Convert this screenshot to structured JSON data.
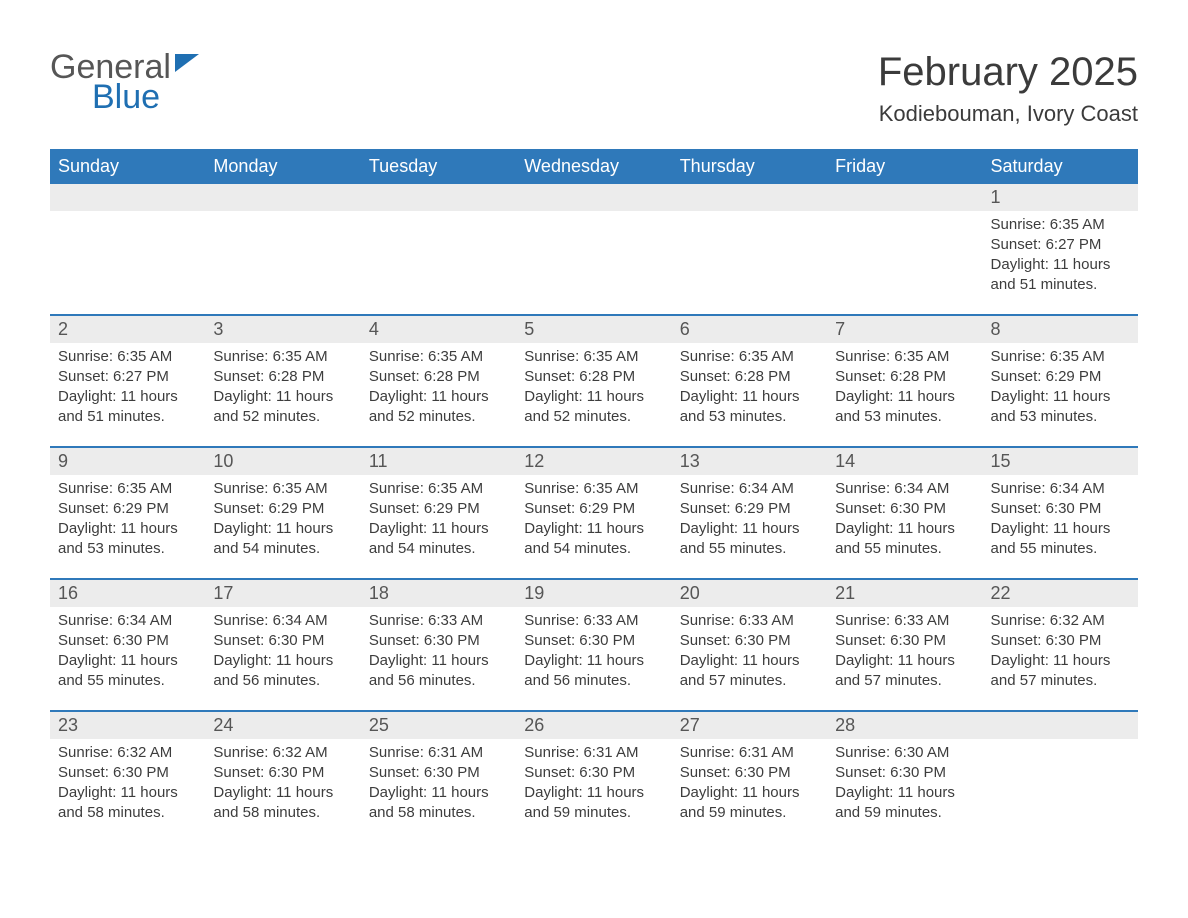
{
  "logo": {
    "word1": "General",
    "word2": "Blue"
  },
  "header": {
    "month_title": "February 2025",
    "location": "Kodiebouman, Ivory Coast"
  },
  "colors": {
    "brand_blue": "#2f79ba",
    "logo_blue": "#1f6fb2",
    "text": "#3a3a3a",
    "daynum_bg": "#ececec",
    "background": "#ffffff"
  },
  "calendar": {
    "days_of_week": [
      "Sunday",
      "Monday",
      "Tuesday",
      "Wednesday",
      "Thursday",
      "Friday",
      "Saturday"
    ],
    "weeks": [
      [
        {
          "n": "",
          "sunrise": "",
          "sunset": "",
          "daylight": ""
        },
        {
          "n": "",
          "sunrise": "",
          "sunset": "",
          "daylight": ""
        },
        {
          "n": "",
          "sunrise": "",
          "sunset": "",
          "daylight": ""
        },
        {
          "n": "",
          "sunrise": "",
          "sunset": "",
          "daylight": ""
        },
        {
          "n": "",
          "sunrise": "",
          "sunset": "",
          "daylight": ""
        },
        {
          "n": "",
          "sunrise": "",
          "sunset": "",
          "daylight": ""
        },
        {
          "n": "1",
          "sunrise": "Sunrise: 6:35 AM",
          "sunset": "Sunset: 6:27 PM",
          "daylight": "Daylight: 11 hours and 51 minutes."
        }
      ],
      [
        {
          "n": "2",
          "sunrise": "Sunrise: 6:35 AM",
          "sunset": "Sunset: 6:27 PM",
          "daylight": "Daylight: 11 hours and 51 minutes."
        },
        {
          "n": "3",
          "sunrise": "Sunrise: 6:35 AM",
          "sunset": "Sunset: 6:28 PM",
          "daylight": "Daylight: 11 hours and 52 minutes."
        },
        {
          "n": "4",
          "sunrise": "Sunrise: 6:35 AM",
          "sunset": "Sunset: 6:28 PM",
          "daylight": "Daylight: 11 hours and 52 minutes."
        },
        {
          "n": "5",
          "sunrise": "Sunrise: 6:35 AM",
          "sunset": "Sunset: 6:28 PM",
          "daylight": "Daylight: 11 hours and 52 minutes."
        },
        {
          "n": "6",
          "sunrise": "Sunrise: 6:35 AM",
          "sunset": "Sunset: 6:28 PM",
          "daylight": "Daylight: 11 hours and 53 minutes."
        },
        {
          "n": "7",
          "sunrise": "Sunrise: 6:35 AM",
          "sunset": "Sunset: 6:28 PM",
          "daylight": "Daylight: 11 hours and 53 minutes."
        },
        {
          "n": "8",
          "sunrise": "Sunrise: 6:35 AM",
          "sunset": "Sunset: 6:29 PM",
          "daylight": "Daylight: 11 hours and 53 minutes."
        }
      ],
      [
        {
          "n": "9",
          "sunrise": "Sunrise: 6:35 AM",
          "sunset": "Sunset: 6:29 PM",
          "daylight": "Daylight: 11 hours and 53 minutes."
        },
        {
          "n": "10",
          "sunrise": "Sunrise: 6:35 AM",
          "sunset": "Sunset: 6:29 PM",
          "daylight": "Daylight: 11 hours and 54 minutes."
        },
        {
          "n": "11",
          "sunrise": "Sunrise: 6:35 AM",
          "sunset": "Sunset: 6:29 PM",
          "daylight": "Daylight: 11 hours and 54 minutes."
        },
        {
          "n": "12",
          "sunrise": "Sunrise: 6:35 AM",
          "sunset": "Sunset: 6:29 PM",
          "daylight": "Daylight: 11 hours and 54 minutes."
        },
        {
          "n": "13",
          "sunrise": "Sunrise: 6:34 AM",
          "sunset": "Sunset: 6:29 PM",
          "daylight": "Daylight: 11 hours and 55 minutes."
        },
        {
          "n": "14",
          "sunrise": "Sunrise: 6:34 AM",
          "sunset": "Sunset: 6:30 PM",
          "daylight": "Daylight: 11 hours and 55 minutes."
        },
        {
          "n": "15",
          "sunrise": "Sunrise: 6:34 AM",
          "sunset": "Sunset: 6:30 PM",
          "daylight": "Daylight: 11 hours and 55 minutes."
        }
      ],
      [
        {
          "n": "16",
          "sunrise": "Sunrise: 6:34 AM",
          "sunset": "Sunset: 6:30 PM",
          "daylight": "Daylight: 11 hours and 55 minutes."
        },
        {
          "n": "17",
          "sunrise": "Sunrise: 6:34 AM",
          "sunset": "Sunset: 6:30 PM",
          "daylight": "Daylight: 11 hours and 56 minutes."
        },
        {
          "n": "18",
          "sunrise": "Sunrise: 6:33 AM",
          "sunset": "Sunset: 6:30 PM",
          "daylight": "Daylight: 11 hours and 56 minutes."
        },
        {
          "n": "19",
          "sunrise": "Sunrise: 6:33 AM",
          "sunset": "Sunset: 6:30 PM",
          "daylight": "Daylight: 11 hours and 56 minutes."
        },
        {
          "n": "20",
          "sunrise": "Sunrise: 6:33 AM",
          "sunset": "Sunset: 6:30 PM",
          "daylight": "Daylight: 11 hours and 57 minutes."
        },
        {
          "n": "21",
          "sunrise": "Sunrise: 6:33 AM",
          "sunset": "Sunset: 6:30 PM",
          "daylight": "Daylight: 11 hours and 57 minutes."
        },
        {
          "n": "22",
          "sunrise": "Sunrise: 6:32 AM",
          "sunset": "Sunset: 6:30 PM",
          "daylight": "Daylight: 11 hours and 57 minutes."
        }
      ],
      [
        {
          "n": "23",
          "sunrise": "Sunrise: 6:32 AM",
          "sunset": "Sunset: 6:30 PM",
          "daylight": "Daylight: 11 hours and 58 minutes."
        },
        {
          "n": "24",
          "sunrise": "Sunrise: 6:32 AM",
          "sunset": "Sunset: 6:30 PM",
          "daylight": "Daylight: 11 hours and 58 minutes."
        },
        {
          "n": "25",
          "sunrise": "Sunrise: 6:31 AM",
          "sunset": "Sunset: 6:30 PM",
          "daylight": "Daylight: 11 hours and 58 minutes."
        },
        {
          "n": "26",
          "sunrise": "Sunrise: 6:31 AM",
          "sunset": "Sunset: 6:30 PM",
          "daylight": "Daylight: 11 hours and 59 minutes."
        },
        {
          "n": "27",
          "sunrise": "Sunrise: 6:31 AM",
          "sunset": "Sunset: 6:30 PM",
          "daylight": "Daylight: 11 hours and 59 minutes."
        },
        {
          "n": "28",
          "sunrise": "Sunrise: 6:30 AM",
          "sunset": "Sunset: 6:30 PM",
          "daylight": "Daylight: 11 hours and 59 minutes."
        },
        {
          "n": "",
          "sunrise": "",
          "sunset": "",
          "daylight": ""
        }
      ]
    ]
  }
}
